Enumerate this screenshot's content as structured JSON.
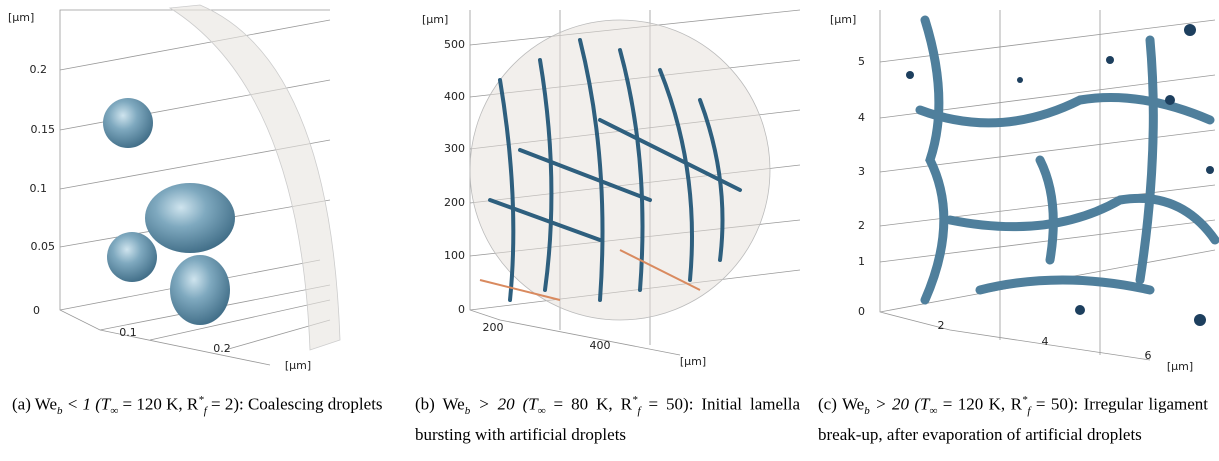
{
  "panels": [
    {
      "y_unit": "[µm]",
      "yticks": [
        "0",
        "0.05",
        "0.1",
        "0.15",
        "0.2"
      ],
      "xticks": [
        "0.1",
        "0.2"
      ],
      "x_unit": "[µm]",
      "caption": [
        "(a) We",
        "b",
        " < 1 (T",
        "∞",
        " = 120 K, R",
        "*",
        "f",
        " = 2): Coalescing droplets"
      ]
    },
    {
      "y_unit": "[µm]",
      "yticks": [
        "0",
        "100",
        "200",
        "300",
        "400",
        "500"
      ],
      "xticks": [
        "200",
        "400"
      ],
      "x_unit": "[µm]",
      "caption": [
        "(b) We",
        "b",
        " > 20 (T",
        "∞",
        " = 80 K, R",
        "*",
        "f",
        " = 50): Initial lamella bursting with artificial droplets"
      ]
    },
    {
      "y_unit": "[µm]",
      "yticks": [
        "0",
        "1",
        "2",
        "3",
        "4",
        "5"
      ],
      "xticks": [
        "2",
        "4",
        "6"
      ],
      "x_unit": "[µm]",
      "caption": [
        "(c) We",
        "b",
        " > 20 (T",
        "∞",
        " = 120 K, R",
        "*",
        "f",
        " = 50): Irregular ligament break-up, after evaporation of artificial droplets"
      ]
    }
  ]
}
